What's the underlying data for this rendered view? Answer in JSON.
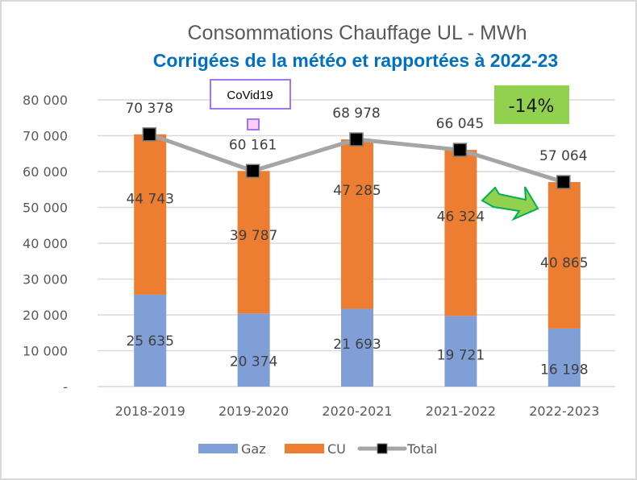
{
  "chart_data": {
    "type": "bar",
    "stacked": true,
    "title": "Consommations Chauffage UL - MWh",
    "subtitle": "Corrigées de la météo et rapportées à 2022-23",
    "xlabel": "",
    "ylabel": "",
    "categories": [
      "2018-2019",
      "2019-2020",
      "2020-2021",
      "2021-2022",
      "2022-2023"
    ],
    "series": [
      {
        "name": "Gaz",
        "kind": "bar",
        "color": "#7f9fd6",
        "values": [
          25635,
          20374,
          21693,
          19721,
          16198
        ],
        "labels": [
          "25 635",
          "20 374",
          "21 693",
          "19 721",
          "16 198"
        ]
      },
      {
        "name": "CU",
        "kind": "bar",
        "color": "#ed7d31",
        "values": [
          44743,
          39787,
          47285,
          46324,
          40865
        ],
        "labels": [
          "44 743",
          "39 787",
          "47 285",
          "46 324",
          "40 865"
        ]
      },
      {
        "name": "Total",
        "kind": "line",
        "color": "#a5a5a5",
        "marker_color": "#000000",
        "values": [
          70378,
          60161,
          68978,
          66045,
          57064
        ],
        "labels": [
          "70 378",
          "60 161",
          "68 978",
          "66 045",
          "57 064"
        ]
      }
    ],
    "ylim": [
      0,
      80000
    ],
    "yticks": [
      0,
      10000,
      20000,
      30000,
      40000,
      50000,
      60000,
      70000,
      80000
    ],
    "ytick_labels": [
      "-",
      "10 000",
      "20 000",
      "30 000",
      "40 000",
      "50 000",
      "60 000",
      "70 000",
      "80 000"
    ],
    "grid": true,
    "legend": "bottom",
    "annotations": [
      {
        "text": "CoVid19",
        "target_category": "2019-2020",
        "style": "purple-outlined-box"
      },
      {
        "text": "-14%",
        "style": "green-box",
        "fill": "#92d050"
      },
      {
        "shape": "arrow",
        "direction": "down-right",
        "fill": "#92d050",
        "outline": "#00b050",
        "target_category": "2022-2023"
      }
    ]
  }
}
